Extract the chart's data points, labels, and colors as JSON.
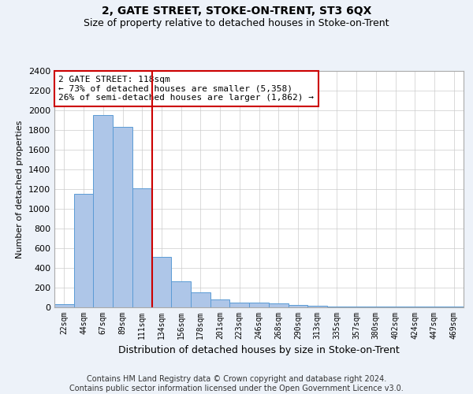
{
  "title": "2, GATE STREET, STOKE-ON-TRENT, ST3 6QX",
  "subtitle": "Size of property relative to detached houses in Stoke-on-Trent",
  "xlabel": "Distribution of detached houses by size in Stoke-on-Trent",
  "ylabel": "Number of detached properties",
  "categories": [
    "22sqm",
    "44sqm",
    "67sqm",
    "89sqm",
    "111sqm",
    "134sqm",
    "156sqm",
    "178sqm",
    "201sqm",
    "223sqm",
    "246sqm",
    "268sqm",
    "290sqm",
    "313sqm",
    "335sqm",
    "357sqm",
    "380sqm",
    "402sqm",
    "424sqm",
    "447sqm",
    "469sqm"
  ],
  "values": [
    30,
    1150,
    1950,
    1830,
    1210,
    515,
    265,
    150,
    80,
    50,
    45,
    40,
    25,
    20,
    10,
    5,
    5,
    5,
    5,
    5,
    5
  ],
  "bar_color": "#aec6e8",
  "bar_edge_color": "#5b9bd5",
  "vline_x": 4.5,
  "vline_color": "#cc0000",
  "annotation_text": "2 GATE STREET: 118sqm\n← 73% of detached houses are smaller (5,358)\n26% of semi-detached houses are larger (1,862) →",
  "annotation_box_color": "#cc0000",
  "annotation_fontsize": 8,
  "ylim": [
    0,
    2400
  ],
  "yticks": [
    0,
    200,
    400,
    600,
    800,
    1000,
    1200,
    1400,
    1600,
    1800,
    2000,
    2200,
    2400
  ],
  "background_color": "#edf2f9",
  "plot_background": "#ffffff",
  "grid_color": "#cccccc",
  "footer": "Contains HM Land Registry data © Crown copyright and database right 2024.\nContains public sector information licensed under the Open Government Licence v3.0.",
  "title_fontsize": 10,
  "subtitle_fontsize": 9,
  "xlabel_fontsize": 9,
  "ylabel_fontsize": 8,
  "footer_fontsize": 7,
  "tick_fontsize": 7,
  "ytick_fontsize": 8
}
